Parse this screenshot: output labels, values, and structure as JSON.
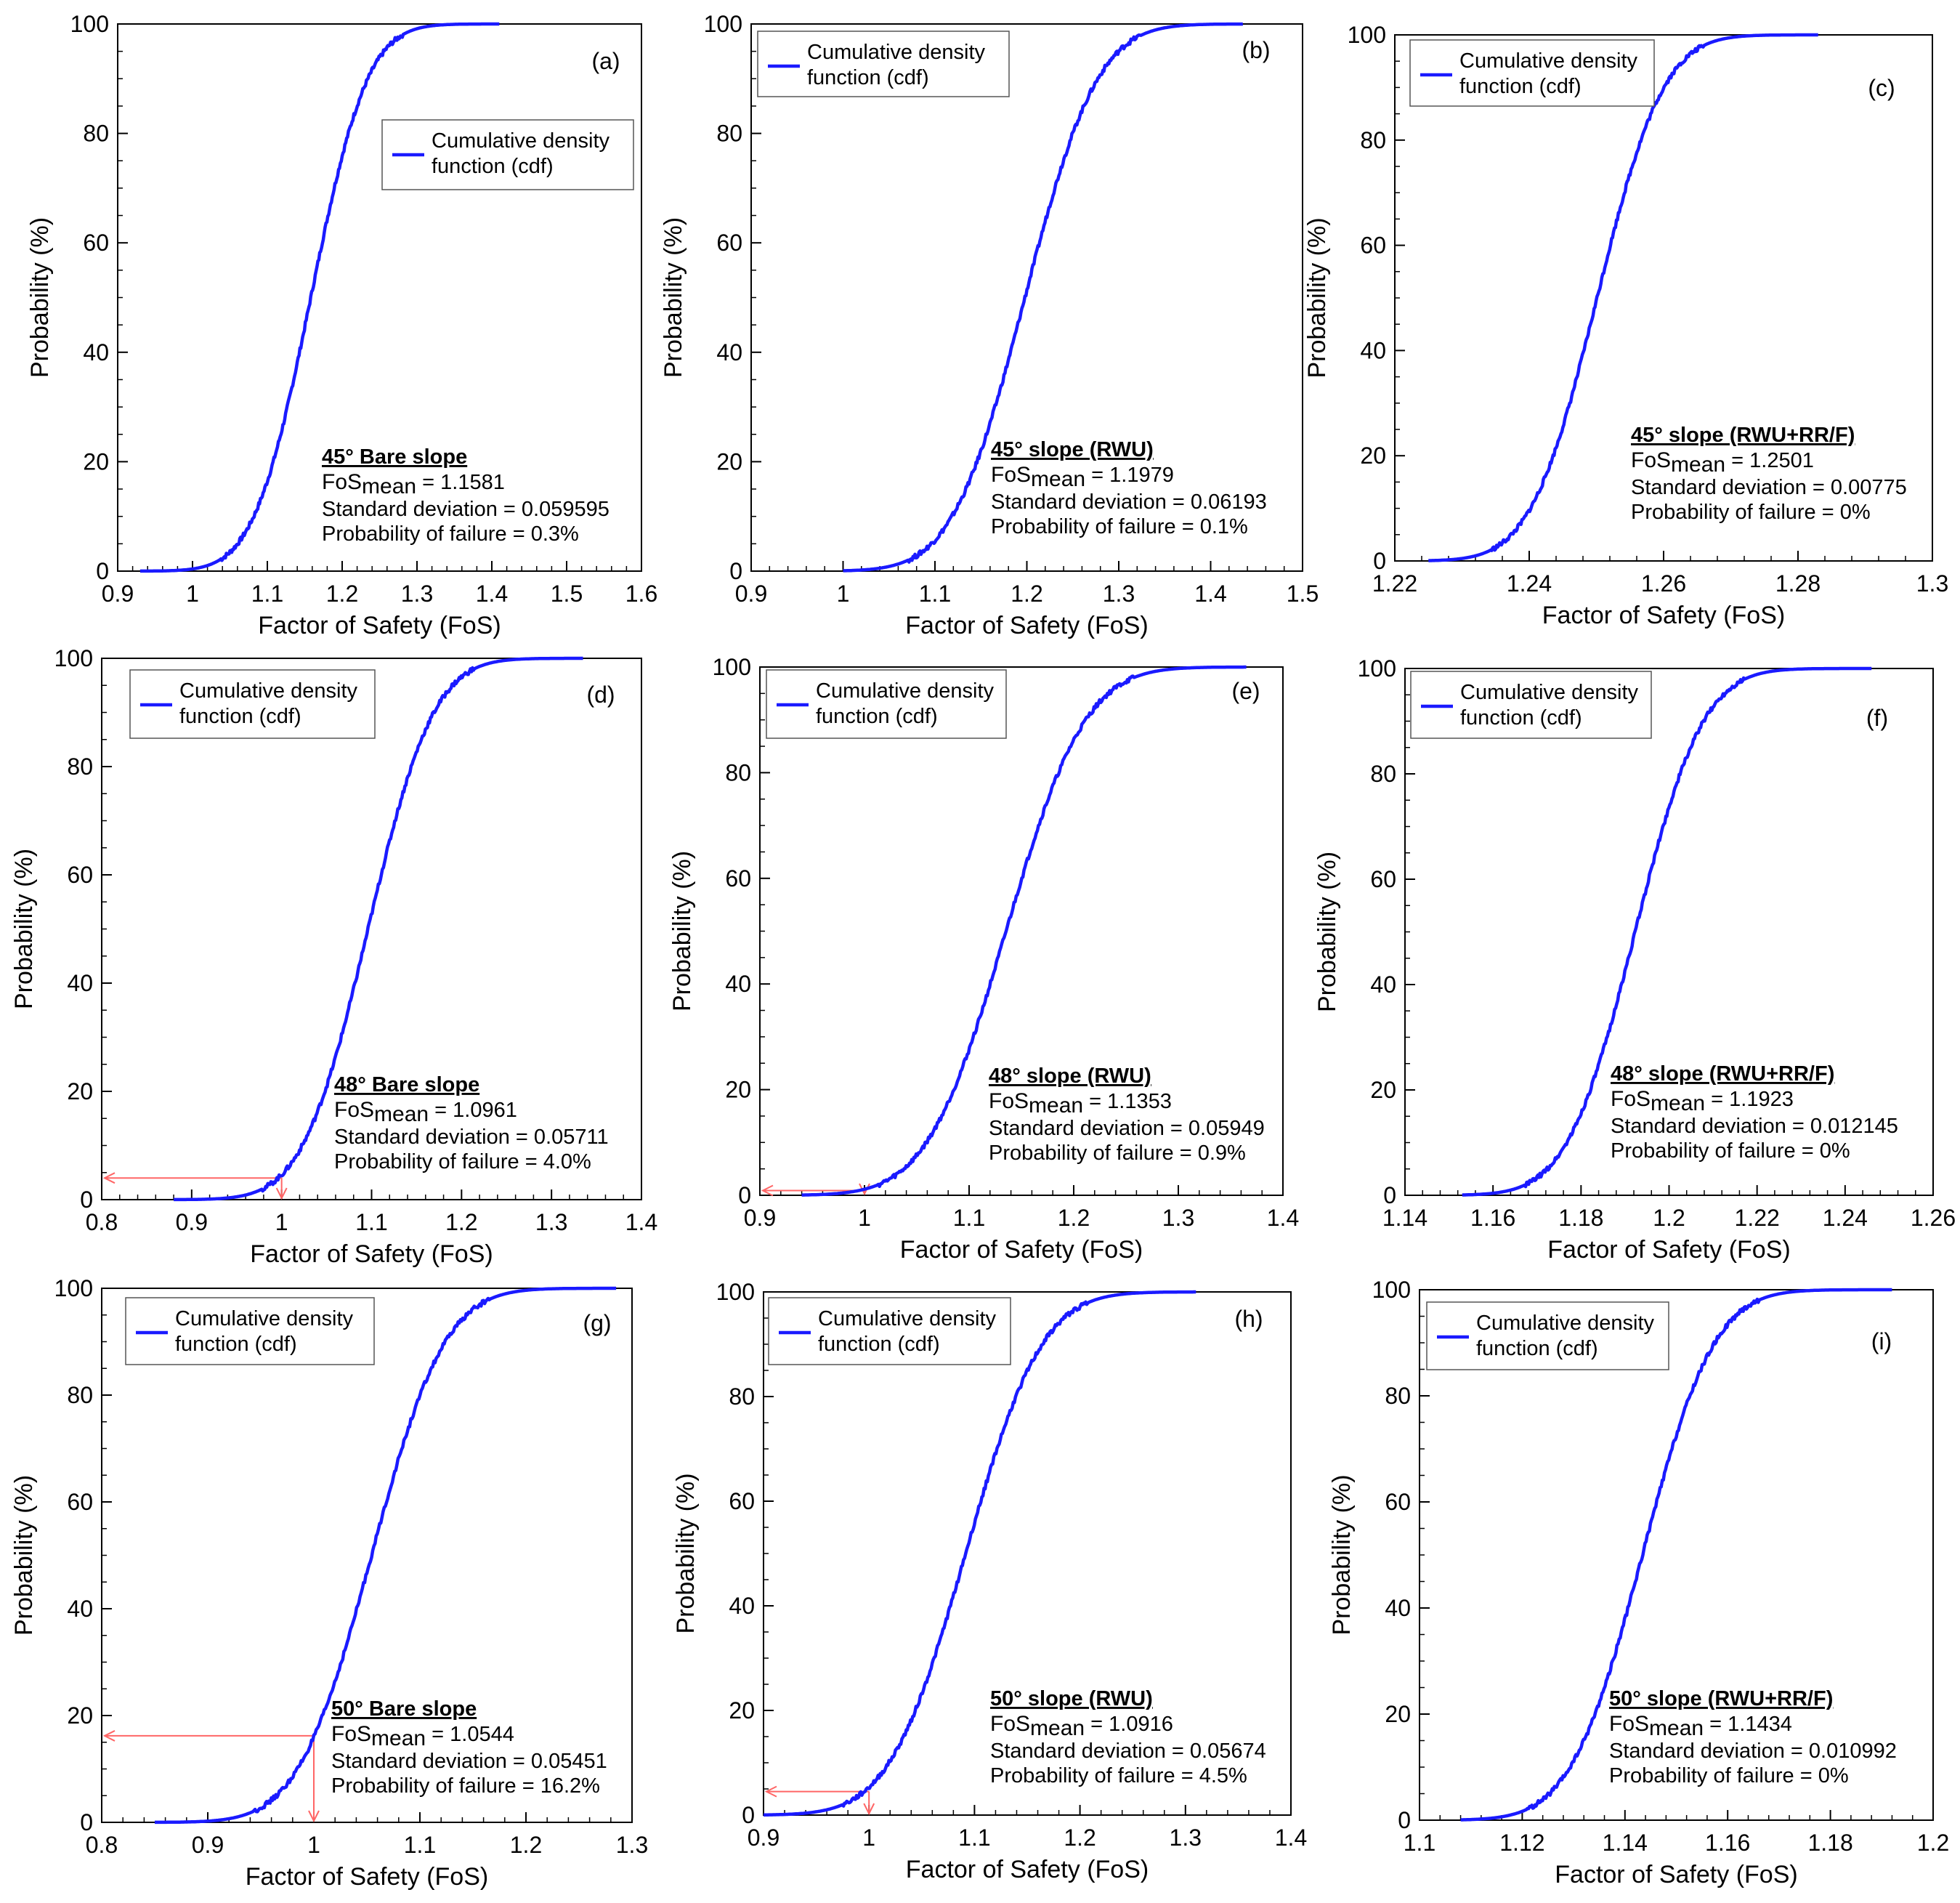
{
  "chart_data": [
    {
      "id": "a",
      "type": "line",
      "panel_label": "(a)",
      "xlabel": "Factor of Safety (FoS)",
      "ylabel": "Probability (%)",
      "xlim": [
        0.9,
        1.6
      ],
      "ylim": [
        0,
        100
      ],
      "xticks": [
        0.9,
        1,
        1.1,
        1.2,
        1.3,
        1.4,
        1.5,
        1.6
      ],
      "xtick_labels": [
        "0.9",
        "1",
        "1.1",
        "1.2",
        "1.3",
        "1.4",
        "1.5",
        "1.6"
      ],
      "yticks": [
        0,
        20,
        40,
        60,
        80,
        100
      ],
      "ytick_labels": [
        "0",
        "20",
        "40",
        "60",
        "80",
        "100"
      ],
      "legend": {
        "label_line1": "Cumulative density",
        "label_line2": "function (cdf)",
        "color": "#1a1aff",
        "placement": "upper-right"
      },
      "series": [
        {
          "name": "Cumulative density function (cdf)",
          "mean": 1.1581,
          "std": 0.059595,
          "x_min": 0.93,
          "x_max": 1.41
        }
      ],
      "annotation": {
        "title": "45° Bare slope",
        "fos_prefix": "FoS",
        "fos_sub": "mean",
        "fos_value": " = 1.1581",
        "std_text": "Standard deviation = 0.059595",
        "pf_text": "Probability of failure = 0.3%"
      }
    },
    {
      "id": "b",
      "type": "line",
      "panel_label": "(b)",
      "xlabel": "Factor of Safety (FoS)",
      "ylabel": "Probability (%)",
      "xlim": [
        0.9,
        1.5
      ],
      "ylim": [
        0,
        100
      ],
      "xticks": [
        0.9,
        1,
        1.1,
        1.2,
        1.3,
        1.4,
        1.5
      ],
      "xtick_labels": [
        "0.9",
        "1",
        "1.1",
        "1.2",
        "1.3",
        "1.4",
        "1.5"
      ],
      "yticks": [
        0,
        20,
        40,
        60,
        80,
        100
      ],
      "ytick_labels": [
        "0",
        "20",
        "40",
        "60",
        "80",
        "100"
      ],
      "legend": {
        "label_line1": "Cumulative density",
        "label_line2": "function (cdf)",
        "color": "#1a1aff",
        "placement": "upper-left"
      },
      "series": [
        {
          "name": "Cumulative density function (cdf)",
          "mean": 1.1979,
          "std": 0.06193,
          "x_min": 1.0,
          "x_max": 1.435
        }
      ],
      "annotation": {
        "title": "45° slope (RWU)",
        "fos_prefix": "FoS",
        "fos_sub": "mean",
        "fos_value": " = 1.1979",
        "std_text": "Standard deviation = 0.06193",
        "pf_text": "Probability of failure = 0.1%"
      }
    },
    {
      "id": "c",
      "type": "line",
      "panel_label": "(c)",
      "xlabel": "Factor of Safety (FoS)",
      "ylabel": "Probability (%)",
      "xlim": [
        1.22,
        1.3
      ],
      "ylim": [
        0,
        100
      ],
      "xticks": [
        1.22,
        1.24,
        1.26,
        1.28,
        1.3
      ],
      "xtick_labels": [
        "1.22",
        "1.24",
        "1.26",
        "1.28",
        "1.3"
      ],
      "yticks": [
        0,
        20,
        40,
        60,
        80,
        100
      ],
      "ytick_labels": [
        "0",
        "20",
        "40",
        "60",
        "80",
        "100"
      ],
      "legend": {
        "label_line1": "Cumulative density",
        "label_line2": "function (cdf)",
        "color": "#1a1aff",
        "placement": "upper-left"
      },
      "series": [
        {
          "name": "Cumulative density function (cdf)",
          "mean": 1.2501,
          "std": 0.00775,
          "x_min": 1.225,
          "x_max": 1.283
        }
      ],
      "annotation": {
        "title": "45° slope (RWU+RR/F)",
        "fos_prefix": "FoS",
        "fos_sub": "mean",
        "fos_value": " = 1.2501",
        "std_text": "Standard deviation = 0.00775",
        "pf_text": "Probability of failure = 0%"
      }
    },
    {
      "id": "d",
      "type": "line",
      "panel_label": "(d)",
      "xlabel": "Factor of Safety (FoS)",
      "ylabel": "Probability (%)",
      "xlim": [
        0.8,
        1.4
      ],
      "ylim": [
        0,
        100
      ],
      "xticks": [
        0.8,
        0.9,
        1,
        1.1,
        1.2,
        1.3,
        1.4
      ],
      "xtick_labels": [
        "0.8",
        "0.9",
        "1",
        "1.1",
        "1.2",
        "1.3",
        "1.4"
      ],
      "yticks": [
        0,
        20,
        40,
        60,
        80,
        100
      ],
      "ytick_labels": [
        "0",
        "20",
        "40",
        "60",
        "80",
        "100"
      ],
      "legend": {
        "label_line1": "Cumulative density",
        "label_line2": "function (cdf)",
        "color": "#1a1aff",
        "placement": "upper-left"
      },
      "series": [
        {
          "name": "Cumulative density function (cdf)",
          "mean": 1.0961,
          "std": 0.05711,
          "x_min": 0.88,
          "x_max": 1.335
        }
      ],
      "failure_marker": {
        "fos": 1.0,
        "probability": 4.0,
        "color": "#ff6666"
      },
      "annotation": {
        "title": "48° Bare slope",
        "fos_prefix": "FoS",
        "fos_sub": "mean",
        "fos_value": " = 1.0961",
        "std_text": "Standard deviation = 0.05711",
        "pf_text": "Probability of failure = 4.0%"
      }
    },
    {
      "id": "e",
      "type": "line",
      "panel_label": "(e)",
      "xlabel": "Factor of Safety (FoS)",
      "ylabel": "Probability (%)",
      "xlim": [
        0.9,
        1.4
      ],
      "ylim": [
        0,
        100
      ],
      "xticks": [
        0.9,
        1,
        1.1,
        1.2,
        1.3,
        1.4
      ],
      "xtick_labels": [
        "0.9",
        "1",
        "1.1",
        "1.2",
        "1.3",
        "1.4"
      ],
      "yticks": [
        0,
        20,
        40,
        60,
        80,
        100
      ],
      "ytick_labels": [
        "0",
        "20",
        "40",
        "60",
        "80",
        "100"
      ],
      "legend": {
        "label_line1": "Cumulative density",
        "label_line2": "function (cdf)",
        "color": "#1a1aff",
        "placement": "upper-left"
      },
      "series": [
        {
          "name": "Cumulative density function (cdf)",
          "mean": 1.1353,
          "std": 0.05949,
          "x_min": 0.94,
          "x_max": 1.365
        }
      ],
      "failure_marker": {
        "fos": 1.0,
        "probability": 0.9,
        "color": "#ff6666"
      },
      "annotation": {
        "title": "48° slope (RWU)",
        "fos_prefix": "FoS",
        "fos_sub": "mean",
        "fos_value": " = 1.1353",
        "std_text": "Standard deviation = 0.05949",
        "pf_text": "Probability of failure = 0.9%"
      }
    },
    {
      "id": "f",
      "type": "line",
      "panel_label": "(f)",
      "xlabel": "Factor of Safety (FoS)",
      "ylabel": "Probability (%)",
      "xlim": [
        1.14,
        1.26
      ],
      "ylim": [
        0,
        100
      ],
      "xticks": [
        1.14,
        1.16,
        1.18,
        1.2,
        1.22,
        1.24,
        1.26
      ],
      "xtick_labels": [
        "1.14",
        "1.16",
        "1.18",
        "1.2",
        "1.22",
        "1.24",
        "1.26"
      ],
      "yticks": [
        0,
        20,
        40,
        60,
        80,
        100
      ],
      "ytick_labels": [
        "0",
        "20",
        "40",
        "60",
        "80",
        "100"
      ],
      "legend": {
        "label_line1": "Cumulative density",
        "label_line2": "function (cdf)",
        "color": "#1a1aff",
        "placement": "upper-left"
      },
      "series": [
        {
          "name": "Cumulative density function (cdf)",
          "mean": 1.1923,
          "std": 0.012145,
          "x_min": 1.153,
          "x_max": 1.246
        }
      ],
      "annotation": {
        "title": "48° slope (RWU+RR/F)",
        "fos_prefix": "FoS",
        "fos_sub": "mean",
        "fos_value": " = 1.1923",
        "std_text": "Standard deviation = 0.012145",
        "pf_text": "Probability of failure = 0%"
      }
    },
    {
      "id": "g",
      "type": "line",
      "panel_label": "(g)",
      "xlabel": "Factor of Safety (FoS)",
      "ylabel": "Probability (%)",
      "xlim": [
        0.8,
        1.3
      ],
      "ylim": [
        0,
        100
      ],
      "xticks": [
        0.8,
        0.9,
        1,
        1.1,
        1.2,
        1.3
      ],
      "xtick_labels": [
        "0.8",
        "0.9",
        "1",
        "1.1",
        "1.2",
        "1.3"
      ],
      "yticks": [
        0,
        20,
        40,
        60,
        80,
        100
      ],
      "ytick_labels": [
        "0",
        "20",
        "40",
        "60",
        "80",
        "100"
      ],
      "legend": {
        "label_line1": "Cumulative density",
        "label_line2": "function (cdf)",
        "color": "#1a1aff",
        "placement": "upper-left"
      },
      "series": [
        {
          "name": "Cumulative density function (cdf)",
          "mean": 1.0544,
          "std": 0.05451,
          "x_min": 0.85,
          "x_max": 1.285
        }
      ],
      "failure_marker": {
        "fos": 1.0,
        "probability": 16.2,
        "color": "#ff6666"
      },
      "annotation": {
        "title": "50° Bare slope",
        "fos_prefix": "FoS",
        "fos_sub": "mean",
        "fos_value": " = 1.0544",
        "std_text": "Standard deviation = 0.05451",
        "pf_text": "Probability of failure = 16.2%"
      }
    },
    {
      "id": "h",
      "type": "line",
      "panel_label": "(h)",
      "xlabel": "Factor of Safety (FoS)",
      "ylabel": "Probability (%)",
      "xlim": [
        0.9,
        1.4
      ],
      "ylim": [
        0,
        100
      ],
      "xticks": [
        0.9,
        1,
        1.1,
        1.2,
        1.3,
        1.4
      ],
      "xtick_labels": [
        "0.9",
        "1",
        "1.1",
        "1.2",
        "1.3",
        "1.4"
      ],
      "yticks": [
        0,
        20,
        40,
        60,
        80,
        100
      ],
      "ytick_labels": [
        "0",
        "20",
        "40",
        "60",
        "80",
        "100"
      ],
      "legend": {
        "label_line1": "Cumulative density",
        "label_line2": "function (cdf)",
        "color": "#1a1aff",
        "placement": "upper-left"
      },
      "series": [
        {
          "name": "Cumulative density function (cdf)",
          "mean": 1.0916,
          "std": 0.05674,
          "x_min": 0.9,
          "x_max": 1.31
        }
      ],
      "failure_marker": {
        "fos": 1.0,
        "probability": 4.5,
        "color": "#ff6666"
      },
      "annotation": {
        "title": "50° slope (RWU)",
        "fos_prefix": "FoS",
        "fos_sub": "mean",
        "fos_value": " = 1.0916",
        "std_text": "Standard deviation = 0.05674",
        "pf_text": "Probability of failure = 4.5%"
      }
    },
    {
      "id": "i",
      "type": "line",
      "panel_label": "(i)",
      "xlabel": "Factor of Safety (FoS)",
      "ylabel": "Probability (%)",
      "xlim": [
        1.1,
        1.2
      ],
      "ylim": [
        0,
        100
      ],
      "xticks": [
        1.1,
        1.12,
        1.14,
        1.16,
        1.18,
        1.2
      ],
      "xtick_labels": [
        "1.1",
        "1.12",
        "1.14",
        "1.16",
        "1.18",
        "1.2"
      ],
      "yticks": [
        0,
        20,
        40,
        60,
        80,
        100
      ],
      "ytick_labels": [
        "0",
        "20",
        "40",
        "60",
        "80",
        "100"
      ],
      "legend": {
        "label_line1": "Cumulative density",
        "label_line2": "function (cdf)",
        "color": "#1a1aff",
        "placement": "upper-left"
      },
      "series": [
        {
          "name": "Cumulative density function (cdf)",
          "mean": 1.1434,
          "std": 0.010992,
          "x_min": 1.108,
          "x_max": 1.192
        }
      ],
      "annotation": {
        "title": "50° slope (RWU+RR/F)",
        "fos_prefix": "FoS",
        "fos_sub": "mean",
        "fos_value": " = 1.1434",
        "std_text": "Standard deviation = 0.010992",
        "pf_text": "Probability of failure = 0%"
      }
    }
  ]
}
